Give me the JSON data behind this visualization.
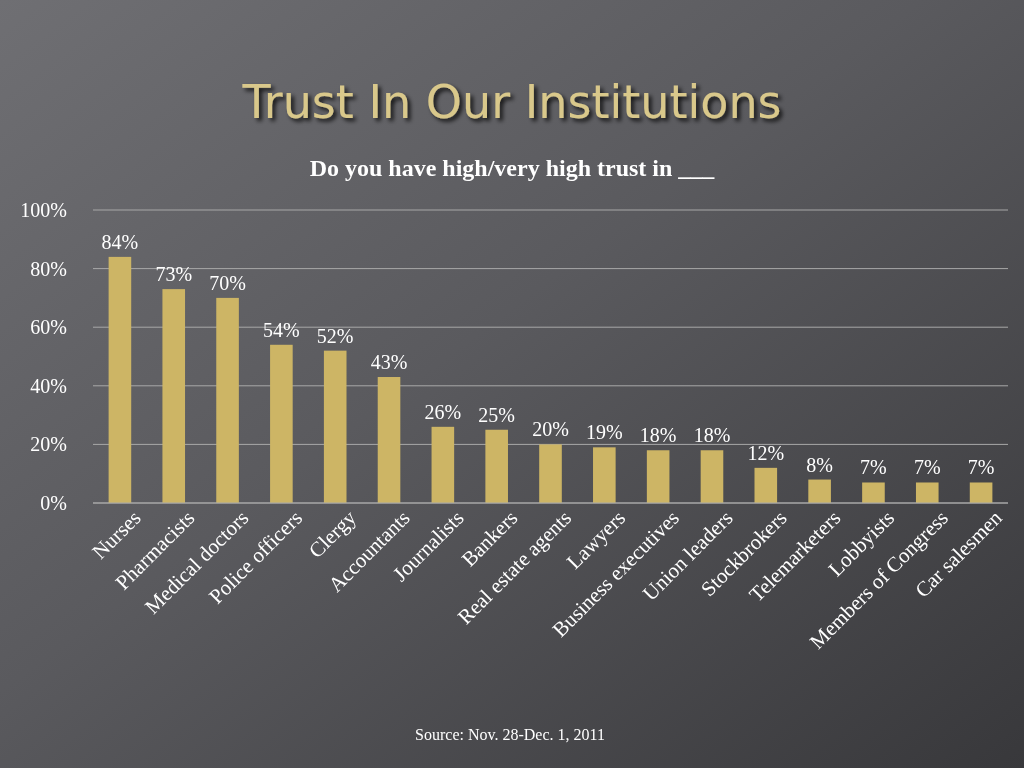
{
  "chart_data": {
    "type": "bar",
    "title": "Trust In Our Institutions",
    "subtitle": "Do you have high/very high trust in ___",
    "categories": [
      "Nurses",
      "Pharmacists",
      "Medical doctors",
      "Police officers",
      "Clergy",
      "Accountants",
      "Journalists",
      "Bankers",
      "Real estate agents",
      "Lawyers",
      "Business executives",
      "Union leaders",
      "Stockbrokers",
      "Telemarketers",
      "Lobbyists",
      "Members of Congress",
      "Car salesmen"
    ],
    "values": [
      84,
      73,
      70,
      54,
      52,
      43,
      26,
      25,
      20,
      19,
      18,
      18,
      12,
      8,
      7,
      7,
      7
    ],
    "value_labels": [
      "84%",
      "73%",
      "70%",
      "54%",
      "52%",
      "43%",
      "26%",
      "25%",
      "20%",
      "19%",
      "18%",
      "18%",
      "12%",
      "8%",
      "7%",
      "7%",
      "7%"
    ],
    "color": "#cdb565",
    "ylim": [
      0,
      100
    ],
    "yticks": [
      {
        "value": 0,
        "label": "0%"
      },
      {
        "value": 20,
        "label": "20%"
      },
      {
        "value": 40,
        "label": "40%"
      },
      {
        "value": 60,
        "label": "60%"
      },
      {
        "value": 80,
        "label": "80%"
      },
      {
        "value": 100,
        "label": "100%"
      }
    ],
    "grid": "y",
    "annotations": [
      "Source: Nov. 28-Dec. 1, 2011"
    ]
  }
}
